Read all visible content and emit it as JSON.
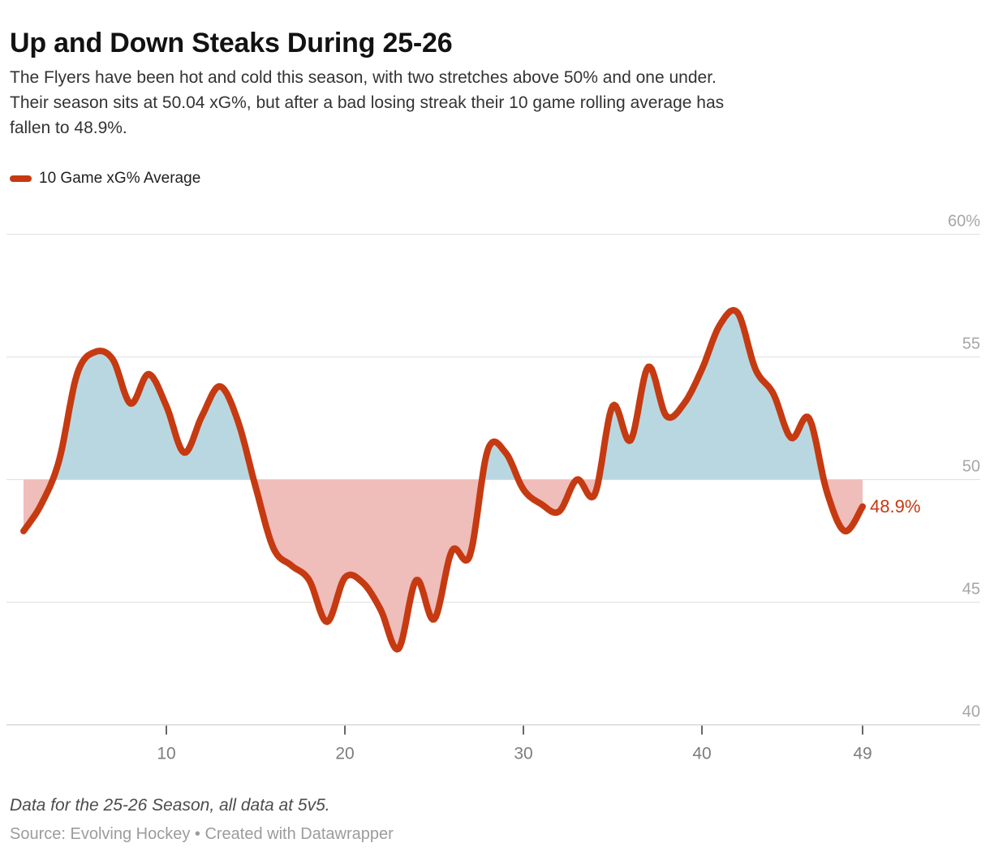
{
  "header": {
    "title": "Up and Down Steaks During 25-26",
    "description_lines": [
      "The Flyers have been hot and cold this season, with two stretches above 50% and one under.",
      "Their season sits at 50.04 xG%, but after a bad losing streak their 10 game rolling average has",
      "fallen to 48.9%."
    ]
  },
  "legend": {
    "label": "10 Game xG% Average"
  },
  "chart_data": {
    "type": "line",
    "title": "Up and Down Steaks During 25-26",
    "baseline": 50,
    "x_axis": {
      "ticks": [
        10,
        20,
        30,
        40,
        49
      ],
      "labels": [
        "10",
        "20",
        "30",
        "40",
        "49"
      ]
    },
    "y_axis": {
      "ticks": [
        60,
        55,
        50,
        45,
        40
      ],
      "labels": [
        "60%",
        "55",
        "50",
        "45",
        "40"
      ],
      "range": [
        40,
        60
      ]
    },
    "series": [
      {
        "name": "10 Game xG% Average",
        "x": [
          2,
          3,
          4,
          5,
          6,
          7,
          8,
          9,
          10,
          11,
          12,
          13,
          14,
          15,
          16,
          17,
          18,
          19,
          20,
          21,
          22,
          23,
          24,
          25,
          26,
          27,
          28,
          29,
          30,
          31,
          32,
          33,
          34,
          35,
          36,
          37,
          38,
          39,
          40,
          41,
          42,
          43,
          44,
          45,
          46,
          47,
          48,
          49
        ],
        "values": [
          47.9,
          49.0,
          50.8,
          54.3,
          55.2,
          54.9,
          53.1,
          54.3,
          53.0,
          51.1,
          52.6,
          53.8,
          52.4,
          49.7,
          47.2,
          46.5,
          45.9,
          44.2,
          46.0,
          45.8,
          44.7,
          43.1,
          45.9,
          44.3,
          47.1,
          46.9,
          51.2,
          51.1,
          49.6,
          49.0,
          48.7,
          50.0,
          49.4,
          53.0,
          51.6,
          54.6,
          52.6,
          53.1,
          54.5,
          56.3,
          56.8,
          54.5,
          53.5,
          51.7,
          52.5,
          49.5,
          47.9,
          48.9
        ]
      }
    ],
    "end_label": "48.9%",
    "colors": {
      "line": "#c63a11",
      "above_fill": "#b9d7e0",
      "below_fill": "#efbdba",
      "gridline": "#e3e3e3",
      "axis_line": "#d0d0d0",
      "x_label": "#7d7d7d",
      "y_label": "#a6a6a6",
      "tick": "#404040"
    }
  },
  "footer": {
    "note": "Data for the 25-26 Season, all data at 5v5.",
    "source": "Source: Evolving Hockey • Created with Datawrapper"
  }
}
